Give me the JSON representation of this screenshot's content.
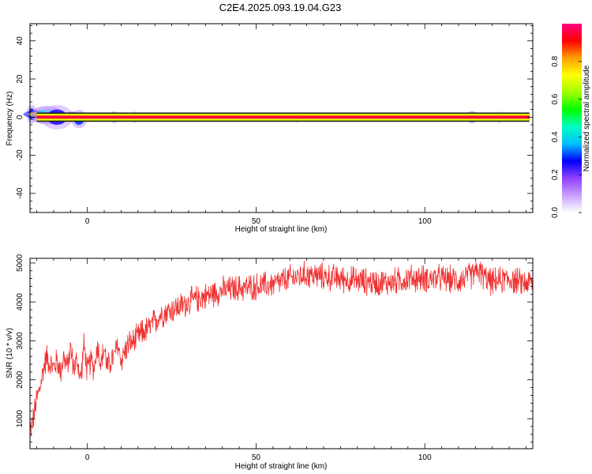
{
  "title": "C2E4.2025.093.19.04.G23",
  "colors": {
    "snr_line": "#f03030",
    "axis": "#000000"
  },
  "chart_data": [
    {
      "type": "heatmap",
      "title": "C2E4.2025.093.19.04.G23",
      "xlabel": "Height of straight line (km)",
      "ylabel": "Frequency (Hz)",
      "xlim": [
        -17,
        132
      ],
      "ylim": [
        -50,
        49
      ],
      "xticks": [
        0,
        50,
        100
      ],
      "yticks": [
        -40,
        -20,
        0,
        20,
        40
      ],
      "colorbar": {
        "label": "Normalized spectral amplitude",
        "range": [
          0,
          1
        ],
        "ticks": [
          "0.0",
          "0.2",
          "0.4",
          "0.6",
          "0.8"
        ],
        "colormap": [
          "#ffffff",
          "#c8a0ff",
          "#9040ff",
          "#0000ff",
          "#00c0ff",
          "#00ffc0",
          "#00ff00",
          "#a0ff00",
          "#ffff00",
          "#ffa000",
          "#ff0000",
          "#ff0080"
        ]
      },
      "band": {
        "center_frequency_hz": 0,
        "core_halfwidth_hz": 0.8,
        "outer_halfwidth_hz": 1.8,
        "core_amplitude": 0.95,
        "outer_amplitude": 0.7
      },
      "blobs": [
        {
          "x": -16.5,
          "y": 1.5,
          "amplitude": 0.3,
          "halfwidth_x": 1.0,
          "halfwidth_y": 3
        },
        {
          "x": -15,
          "y": 1.5,
          "amplitude": 0.75,
          "halfwidth_x": 2.5,
          "halfwidth_y": 1.2
        },
        {
          "x": -12,
          "y": 1.0,
          "amplitude": 0.4,
          "halfwidth_x": 3,
          "halfwidth_y": 3
        },
        {
          "x": -9,
          "y": 0.0,
          "amplitude": 0.25,
          "halfwidth_x": 3,
          "halfwidth_y": 4
        },
        {
          "x": -4.5,
          "y": 0.5,
          "amplitude": 0.55,
          "halfwidth_x": 1.5,
          "halfwidth_y": 1.5
        },
        {
          "x": -2.5,
          "y": -1.0,
          "amplitude": 0.3,
          "halfwidth_x": 1.5,
          "halfwidth_y": 3
        },
        {
          "x": 4,
          "y": 0.0,
          "amplitude": 0.35,
          "halfwidth_x": 1.0,
          "halfwidth_y": 1.5
        },
        {
          "x": 8,
          "y": 0.0,
          "amplitude": 0.3,
          "halfwidth_x": 0.8,
          "halfwidth_y": 2
        },
        {
          "x": 14,
          "y": 0.0,
          "amplitude": 0.2,
          "halfwidth_x": 0.5,
          "halfwidth_y": 2
        },
        {
          "x": 62,
          "y": 0.0,
          "amplitude": 0.15,
          "halfwidth_x": 0.5,
          "halfwidth_y": 2
        },
        {
          "x": 108,
          "y": 0.0,
          "amplitude": 0.3,
          "halfwidth_x": 1.0,
          "halfwidth_y": 1.5
        },
        {
          "x": 114,
          "y": 0.0,
          "amplitude": 0.4,
          "halfwidth_x": 1.0,
          "halfwidth_y": 2
        },
        {
          "x": 122,
          "y": 0.0,
          "amplitude": 0.2,
          "halfwidth_x": 0.5,
          "halfwidth_y": 2
        }
      ]
    },
    {
      "type": "line",
      "xlabel": "Height of straight line (km)",
      "ylabel": "SNR (10 * v/v)",
      "xlim": [
        -17,
        132
      ],
      "ylim": [
        230,
        5120
      ],
      "xticks": [
        0,
        50,
        100
      ],
      "yticks": [
        1000,
        2000,
        3000,
        4000,
        5000
      ],
      "series": [
        {
          "trend_x": [
            -17,
            -16,
            -15,
            -14,
            -13,
            -12,
            -11,
            -10,
            -9,
            -8,
            -7,
            -6,
            -5,
            -4,
            -3,
            -2,
            -1,
            0,
            1,
            2,
            3,
            4,
            5,
            6,
            7,
            8,
            9,
            10,
            12,
            14,
            16,
            18,
            20,
            22,
            25,
            28,
            30,
            35,
            40,
            45,
            50,
            55,
            60,
            65,
            70,
            75,
            80,
            85,
            90,
            95,
            100,
            105,
            110,
            113,
            116,
            118,
            120,
            125,
            128,
            132
          ],
          "trend_y": [
            700,
            1000,
            1500,
            1800,
            2300,
            2600,
            2400,
            2300,
            2500,
            2200,
            2600,
            2300,
            2800,
            2300,
            2500,
            2000,
            2900,
            2200,
            2500,
            2300,
            2900,
            2400,
            2800,
            2300,
            2500,
            2600,
            2900,
            2500,
            2900,
            3000,
            3200,
            3300,
            3500,
            3700,
            3800,
            3900,
            4000,
            4150,
            4300,
            4350,
            4400,
            4450,
            4600,
            4700,
            4650,
            4600,
            4550,
            4500,
            4500,
            4600,
            4600,
            4600,
            4550,
            4650,
            4800,
            4600,
            4500,
            4600,
            4500,
            4500
          ],
          "noise_amplitude": 300,
          "samples": 1400
        }
      ]
    }
  ]
}
